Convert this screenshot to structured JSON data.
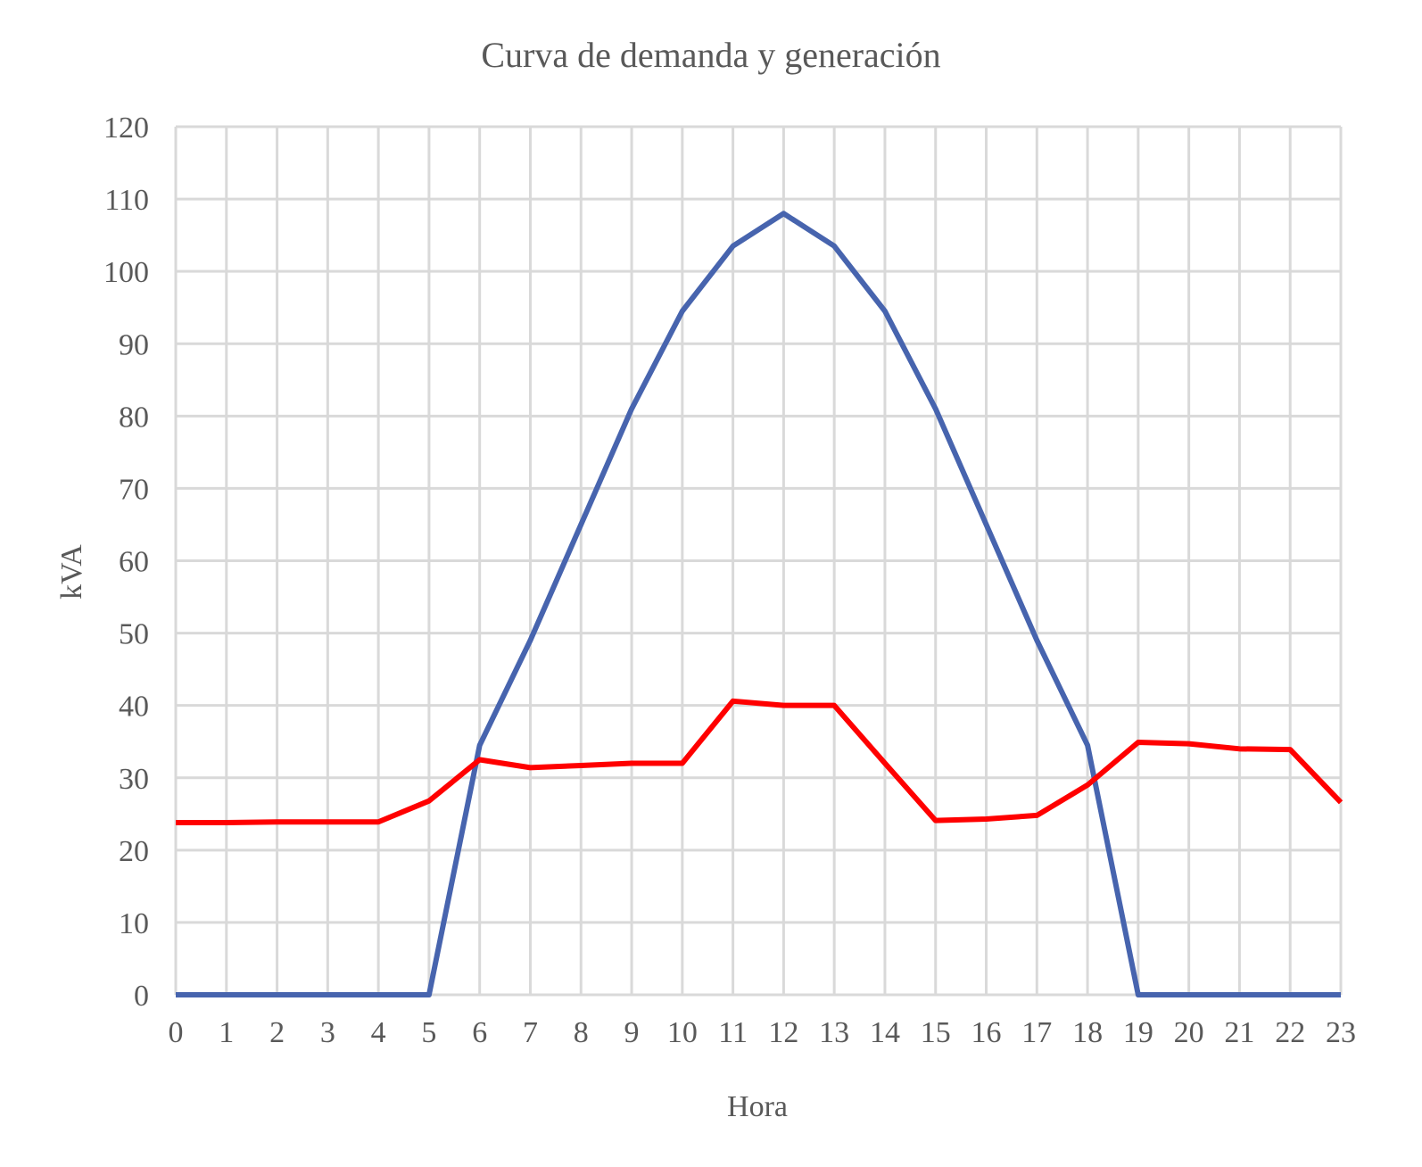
{
  "chart_data": {
    "type": "line",
    "title": "Curva de demanda y generación",
    "xlabel": "Hora",
    "ylabel": "kVA",
    "x": [
      0,
      1,
      2,
      3,
      4,
      5,
      6,
      7,
      8,
      9,
      10,
      11,
      12,
      13,
      14,
      15,
      16,
      17,
      18,
      19,
      20,
      21,
      22,
      23
    ],
    "xlim": [
      0,
      23
    ],
    "ylim": [
      0,
      120
    ],
    "yticks": [
      0,
      10,
      20,
      30,
      40,
      50,
      60,
      70,
      80,
      90,
      100,
      110,
      120
    ],
    "grid": true,
    "legend": "none",
    "series": [
      {
        "color": "#4764ae",
        "values": [
          0,
          0,
          0,
          0,
          0,
          0,
          34.5,
          49,
          65,
          81,
          94.5,
          103.5,
          108,
          103.5,
          94.5,
          81,
          65,
          49,
          34.5,
          0,
          0,
          0,
          0,
          0
        ]
      },
      {
        "color": "#ff0000",
        "values": [
          23.8,
          23.8,
          23.9,
          23.9,
          23.9,
          26.8,
          32.5,
          31.4,
          31.7,
          32,
          32,
          40.6,
          40,
          40,
          32,
          24.1,
          24.3,
          24.8,
          29,
          34.9,
          34.7,
          34,
          33.9,
          26.6
        ]
      }
    ]
  }
}
